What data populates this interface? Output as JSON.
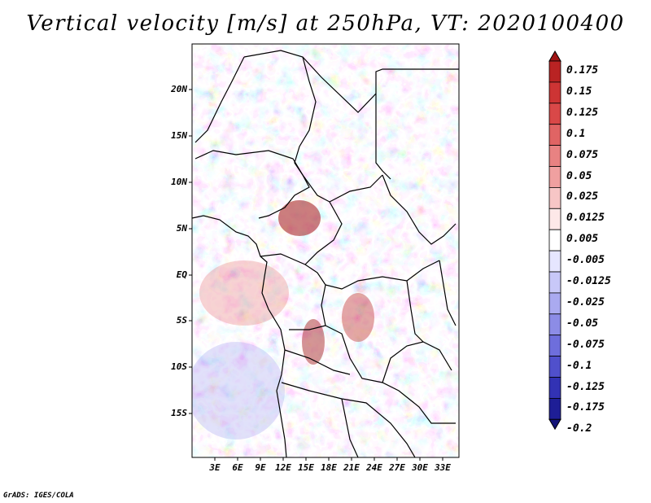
{
  "title": "Vertical velocity [m/s] at 250hPa, VT: 2020100400",
  "credit": "GrADS: IGES/COLA",
  "map": {
    "region": "Central Africa",
    "lat_labels": [
      "20N",
      "15N",
      "10N",
      "5N",
      "EQ",
      "5S",
      "10S",
      "15S"
    ],
    "lon_labels": [
      "3E",
      "6E",
      "9E",
      "12E",
      "15E",
      "18E",
      "21E",
      "24E",
      "27E",
      "30E",
      "33E"
    ]
  },
  "colorbar": {
    "labels": [
      "0.175",
      "0.15",
      "0.125",
      "0.1",
      "0.075",
      "0.05",
      "0.025",
      "0.0125",
      "0.005",
      "-0.005",
      "-0.0125",
      "-0.025",
      "-0.05",
      "-0.075",
      "-0.1",
      "-0.125",
      "-0.175",
      "-0.2"
    ],
    "colors": [
      "#a01414",
      "#b92323",
      "#cd3434",
      "#d94848",
      "#e06464",
      "#e88282",
      "#f0a0a0",
      "#f7c6c6",
      "#fde8e8",
      "#ffffff",
      "#e6e6ff",
      "#c8c8f8",
      "#aaaaf0",
      "#8c8ce6",
      "#6e6edc",
      "#5050cc",
      "#3232b4",
      "#1e1e96",
      "#141478"
    ]
  }
}
